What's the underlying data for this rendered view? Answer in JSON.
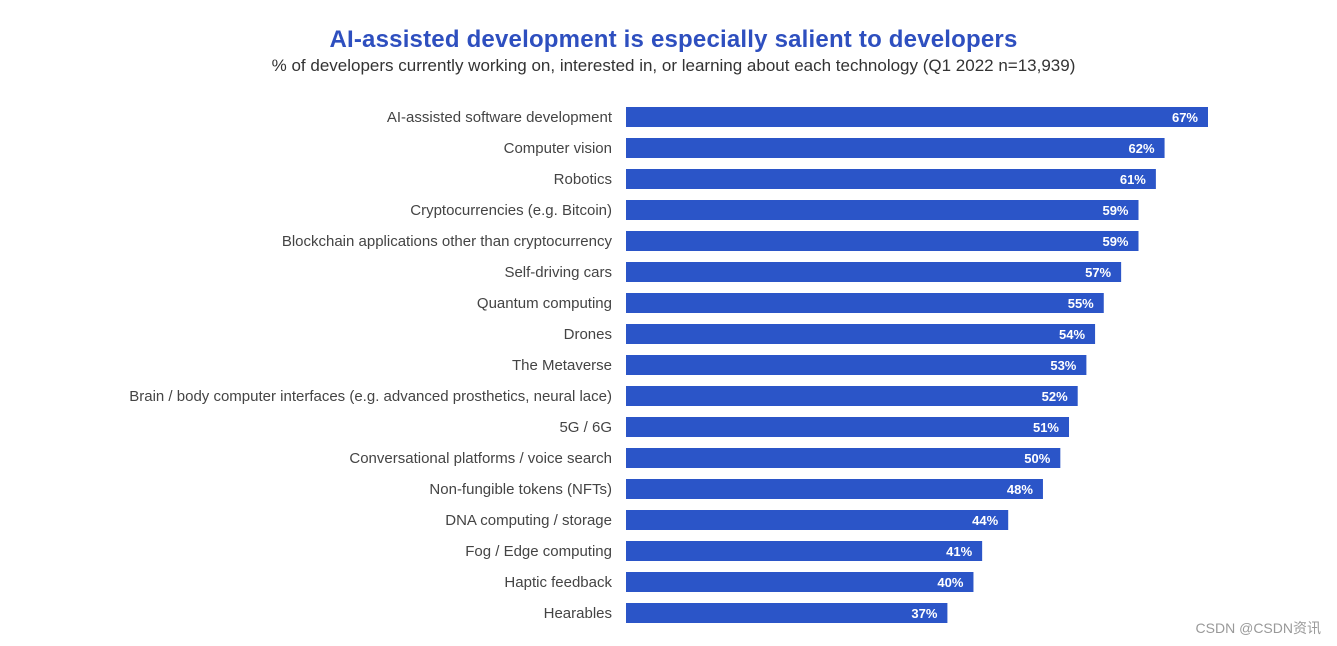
{
  "colors": {
    "bar": "#2B55C8",
    "title": "#2E4FBF",
    "value_text": "#ffffff"
  },
  "watermark": "CSDN @CSDN资讯",
  "chart_data": {
    "type": "bar",
    "orientation": "horizontal",
    "title": "AI-assisted development is especially salient to developers",
    "subtitle": "% of developers currently working on, interested in, or learning about each technology (Q1 2022 n=13,939)",
    "xlabel": "",
    "ylabel": "",
    "grid": false,
    "legend": "none",
    "xlim": [
      0,
      67
    ],
    "categories": [
      "AI-assisted software development",
      "Computer vision",
      "Robotics",
      "Cryptocurrencies (e.g. Bitcoin)",
      "Blockchain applications other than cryptocurrency",
      "Self-driving cars",
      "Quantum computing",
      "Drones",
      "The Metaverse",
      "Brain / body computer interfaces (e.g. advanced prosthetics, neural lace)",
      "5G / 6G",
      "Conversational platforms / voice search",
      "Non-fungible tokens (NFTs)",
      "DNA computing / storage",
      "Fog / Edge computing",
      "Haptic feedback",
      "Hearables"
    ],
    "values": [
      67,
      62,
      61,
      59,
      59,
      57,
      55,
      54,
      53,
      52,
      51,
      50,
      48,
      44,
      41,
      40,
      37
    ],
    "value_labels": [
      "67%",
      "62%",
      "61%",
      "59%",
      "59%",
      "57%",
      "55%",
      "54%",
      "53%",
      "52%",
      "51%",
      "50%",
      "48%",
      "44%",
      "41%",
      "40%",
      "37%"
    ]
  }
}
